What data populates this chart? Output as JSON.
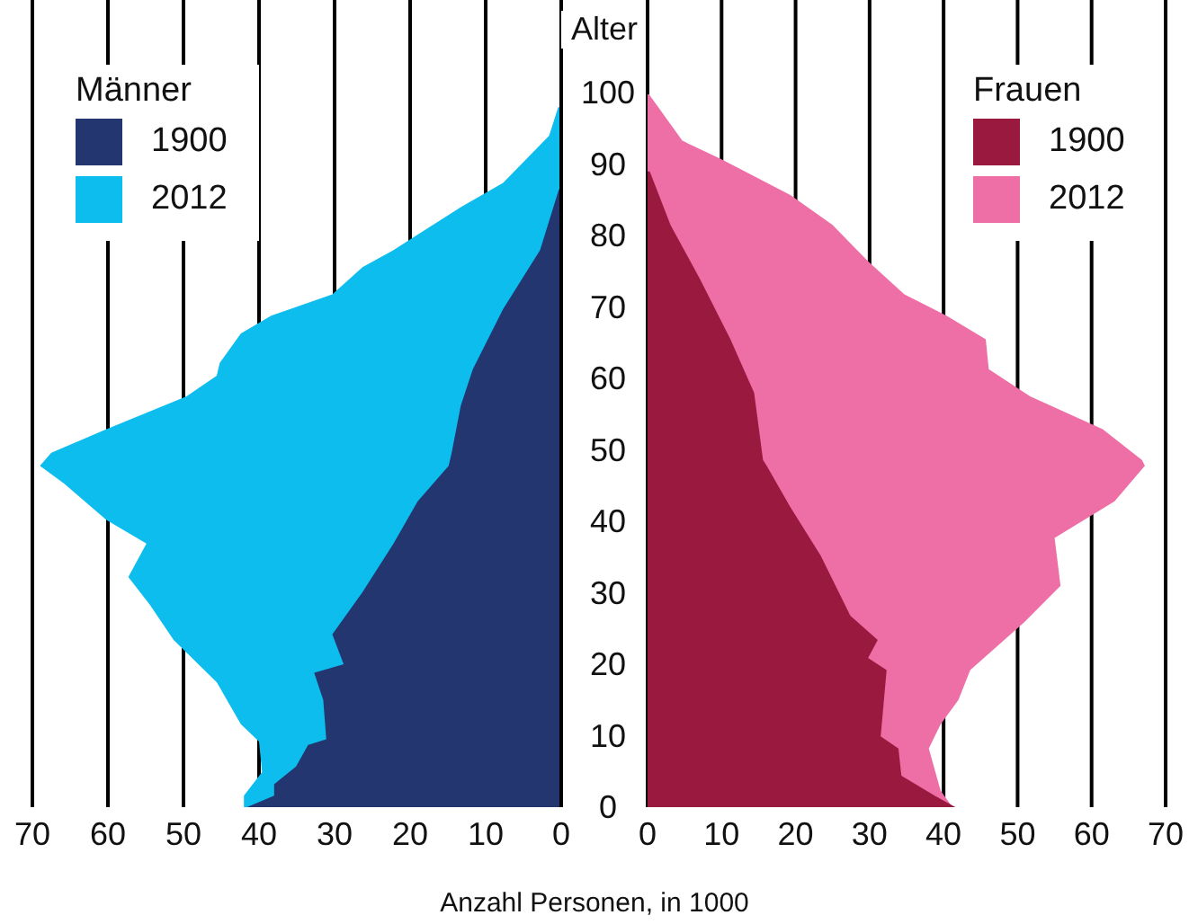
{
  "chart_data": [
    {
      "type": "area",
      "orientation": "horizontal",
      "legend_title": "Männer",
      "ylabel": "Alter",
      "xlabel": "Anzahl Personen, in 1000",
      "xlim": [
        70,
        0
      ],
      "xticks": [
        70,
        60,
        50,
        40,
        30,
        20,
        10,
        0
      ],
      "ylim": [
        0,
        113
      ],
      "yticks": [
        0,
        10,
        20,
        30,
        40,
        50,
        60,
        70,
        80,
        90,
        100
      ],
      "grid": "x",
      "legend": "top left",
      "series": [
        {
          "name": "1900",
          "color": "#24366f",
          "x": [
            0,
            1.6,
            3.2,
            5.7,
            8.7,
            9.5,
            15,
            18.8,
            20,
            24.2,
            30.1,
            36.9,
            42.8,
            47.8,
            49.6,
            56.2,
            61.3,
            69.7,
            78,
            86.5
          ],
          "values": [
            41.6,
            38,
            38,
            35.1,
            33.5,
            31.1,
            31.5,
            32.7,
            28.8,
            30.3,
            26.3,
            22.2,
            19,
            14.9,
            14.5,
            13.3,
            11.7,
            7.7,
            2.8,
            0.3
          ]
        },
        {
          "name": "2012",
          "color": "#0cbdee",
          "x": [
            0,
            1.6,
            4.9,
            9.2,
            11.6,
            17.5,
            23.4,
            28.4,
            32.2,
            36.9,
            40.2,
            45.3,
            47.8,
            49.6,
            52.9,
            57.5,
            60.4,
            62.2,
            66.3,
            68.8,
            71.8,
            75.6,
            78,
            84,
            87.4,
            94,
            98
          ],
          "values": [
            42,
            42,
            39.6,
            40,
            42.4,
            45.6,
            51.3,
            54.5,
            57.3,
            54.9,
            60.2,
            65.8,
            69,
            67.5,
            60.2,
            49.6,
            45.6,
            45.2,
            42.4,
            38.4,
            30.3,
            26.3,
            22.2,
            13.3,
            7.7,
            1.6,
            0.4
          ]
        }
      ]
    },
    {
      "type": "area",
      "orientation": "horizontal",
      "legend_title": "Frauen",
      "xlim": [
        0,
        70
      ],
      "xticks": [
        0,
        10,
        20,
        30,
        40,
        50,
        60,
        70
      ],
      "ylim": [
        0,
        113
      ],
      "yticks": [
        0,
        10,
        20,
        30,
        40,
        50,
        60,
        70,
        80,
        90,
        100
      ],
      "grid": "x",
      "legend": "top right",
      "tick_labels": "x",
      "series": [
        {
          "name": "1900",
          "color": "#9a1a3f",
          "x": [
            0,
            1.6,
            4.4,
            8.2,
            9.9,
            19.2,
            20.9,
            23.4,
            26.8,
            35.2,
            42,
            47.8,
            48.6,
            58,
            65.5,
            73.9,
            81.5,
            89
          ],
          "values": [
            41.6,
            38.8,
            34.3,
            33.9,
            31.5,
            32.3,
            29.8,
            31.1,
            27.4,
            23.4,
            19.3,
            16.1,
            15.6,
            14.4,
            11.2,
            7.1,
            3.1,
            0.3
          ]
        },
        {
          "name": "2012",
          "color": "#ee6ea6",
          "x": [
            0,
            2.3,
            8.2,
            11.6,
            15,
            19.2,
            25.9,
            31,
            37.7,
            42.8,
            47.8,
            48.6,
            52.9,
            57.5,
            61.3,
            65.5,
            68.8,
            71.8,
            76.4,
            81.5,
            85.7,
            90.7,
            93.3,
            99.8
          ],
          "values": [
            41.2,
            39.6,
            38,
            39.6,
            42,
            43.6,
            50.9,
            55.8,
            55,
            63.1,
            67.2,
            66.8,
            61.5,
            51.7,
            46.1,
            45.7,
            40.4,
            34.7,
            29.8,
            25,
            19.3,
            10,
            4.7,
            0.2
          ]
        }
      ]
    }
  ]
}
